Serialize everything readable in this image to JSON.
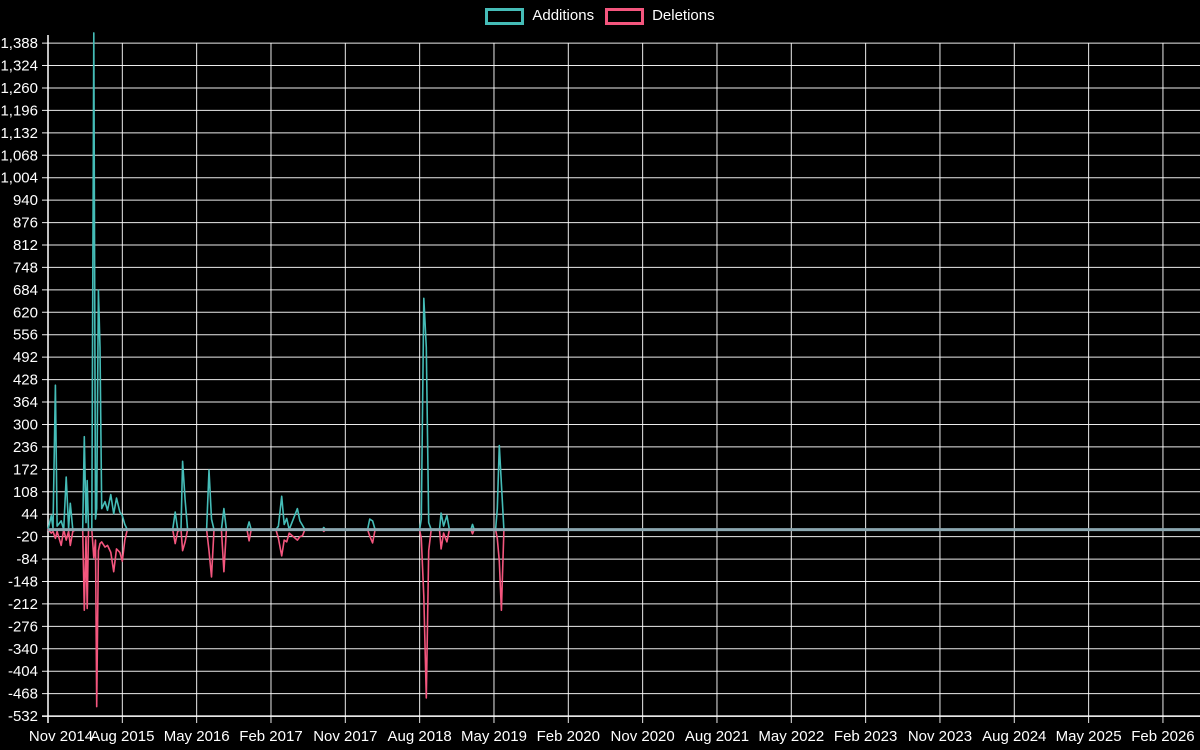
{
  "chart_data": {
    "type": "line",
    "title": "",
    "legend_position": "top-center",
    "grid": "on",
    "grid_color": "#ffffff",
    "zero_line_color": "#8ba7b0",
    "background_color": "#000000",
    "y_axis": {
      "min": -532,
      "max": 1388,
      "step": 64
    },
    "y_tick_labels": [
      "1,388",
      "1,324",
      "1,260",
      "1,196",
      "1,132",
      "1,068",
      "1,004",
      "940",
      "876",
      "812",
      "748",
      "684",
      "620",
      "556",
      "492",
      "428",
      "364",
      "300",
      "236",
      "172",
      "108",
      "44",
      "-20",
      "-84",
      "-148",
      "-212",
      "-276",
      "-340",
      "-404",
      "-468",
      "-532"
    ],
    "x_tick_labels": [
      "Nov 2014",
      "Aug 2015",
      "May 2016",
      "Feb 2017",
      "Nov 2017",
      "Aug 2018",
      "May 2019",
      "Feb 2020",
      "Nov 2020",
      "Aug 2021",
      "May 2022",
      "Feb 2023",
      "Nov 2023",
      "Aug 2024",
      "May 2025",
      "Feb 2026"
    ],
    "x_months_per_tick": 9,
    "x_months": [
      0.0,
      0.4,
      0.6,
      0.9,
      1.1,
      1.6,
      1.9,
      2.2,
      2.5,
      2.7,
      3.0,
      3.4,
      4.2,
      4.4,
      4.6,
      4.75,
      4.9,
      5.3,
      5.55,
      5.75,
      5.9,
      6.1,
      6.3,
      6.5,
      6.9,
      7.2,
      7.6,
      7.95,
      8.3,
      8.7,
      9.0,
      9.3,
      9.6,
      15.1,
      15.4,
      15.7,
      16.1,
      16.3,
      16.6,
      16.9,
      19.2,
      19.5,
      19.8,
      20.1,
      21.0,
      21.3,
      21.6,
      24.1,
      24.35,
      24.6,
      27.6,
      27.9,
      28.3,
      28.6,
      28.9,
      29.2,
      30.2,
      30.5,
      30.8,
      31.1,
      33.2,
      33.4,
      33.6,
      38.7,
      38.95,
      39.3,
      39.6,
      45.0,
      45.2,
      45.5,
      45.8,
      46.1,
      46.4,
      47.4,
      47.6,
      47.9,
      48.3,
      48.6,
      51.2,
      51.4,
      51.6,
      54.2,
      54.4,
      54.65,
      54.9,
      55.2,
      135
    ],
    "series": [
      {
        "name": "Additions",
        "color": "#45bcb7",
        "values": [
          0,
          40,
          5,
          412,
          10,
          25,
          0,
          150,
          5,
          75,
          0,
          0,
          0,
          265,
          20,
          140,
          0,
          0,
          1417,
          30,
          60,
          684,
          520,
          60,
          80,
          55,
          100,
          45,
          90,
          50,
          40,
          15,
          0,
          0,
          50,
          0,
          0,
          195,
          85,
          0,
          0,
          170,
          30,
          0,
          0,
          60,
          0,
          0,
          22,
          0,
          0,
          10,
          95,
          15,
          32,
          0,
          60,
          25,
          13,
          0,
          0,
          6,
          0,
          0,
          30,
          25,
          0,
          0,
          30,
          660,
          520,
          20,
          0,
          0,
          47,
          10,
          40,
          0,
          0,
          15,
          0,
          0,
          60,
          240,
          130,
          0,
          0
        ]
      },
      {
        "name": "Deletions",
        "color": "#f4567e",
        "values": [
          0,
          -10,
          -5,
          -25,
          -5,
          -45,
          0,
          -30,
          -5,
          -45,
          -5,
          0,
          0,
          -230,
          -20,
          -225,
          0,
          0,
          -80,
          -30,
          -505,
          -60,
          -40,
          -35,
          -50,
          -45,
          -65,
          -120,
          -55,
          -65,
          -90,
          -30,
          0,
          0,
          -40,
          -5,
          0,
          -60,
          -35,
          0,
          0,
          -60,
          -135,
          0,
          0,
          -120,
          0,
          0,
          -32,
          0,
          0,
          -25,
          -75,
          -30,
          -35,
          -10,
          -30,
          -20,
          -18,
          0,
          0,
          -5,
          0,
          0,
          -18,
          -38,
          0,
          0,
          -25,
          -190,
          -480,
          -60,
          0,
          0,
          -55,
          -10,
          -35,
          0,
          0,
          -12,
          0,
          0,
          -25,
          -90,
          -230,
          0,
          0
        ]
      }
    ]
  }
}
